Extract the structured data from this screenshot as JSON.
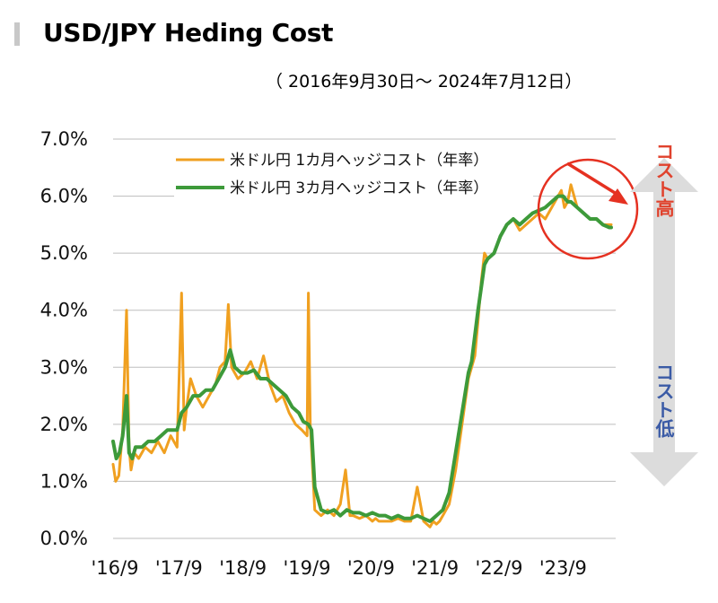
{
  "header": {
    "title": "USD/JPY Heding Cost",
    "subtitle": "（ 2016年9月30日～  2024年7月12日）"
  },
  "side_labels": {
    "high": "コスト高",
    "low": "コスト低"
  },
  "colors": {
    "series_1m": "#f0a020",
    "series_3m": "#3d9a3a",
    "grid": "#bdbdbd",
    "arrow_red": "#e53121",
    "label_high": "#e0422d",
    "label_low": "#3b5ba6",
    "side_arrow": "#dcdcdc"
  },
  "chart_data": {
    "type": "line",
    "title": "USD/JPY Heding Cost",
    "xlabel": "",
    "ylabel": "",
    "ylim": [
      0,
      7
    ],
    "xlim": [
      2016.75,
      2024.6
    ],
    "yticks": [
      "0.0%",
      "1.0%",
      "2.0%",
      "3.0%",
      "4.0%",
      "5.0%",
      "6.0%",
      "7.0%"
    ],
    "xticks": [
      {
        "label": "'16/9",
        "x": 2016.75
      },
      {
        "label": "'17/9",
        "x": 2017.75
      },
      {
        "label": "'18/9",
        "x": 2018.75
      },
      {
        "label": "'19/9",
        "x": 2019.75
      },
      {
        "label": "'20/9",
        "x": 2020.75
      },
      {
        "label": "'21/9",
        "x": 2021.75
      },
      {
        "label": "'22/9",
        "x": 2022.75
      },
      {
        "label": "'23/9",
        "x": 2023.75
      }
    ],
    "grid": true,
    "legend_position": "top",
    "series": [
      {
        "name": "米ドル円 1カ月ヘッジコスト（年率）",
        "x": [
          2016.75,
          2016.79,
          2016.84,
          2016.9,
          2016.96,
          2017.0,
          2017.03,
          2017.08,
          2017.15,
          2017.25,
          2017.35,
          2017.45,
          2017.55,
          2017.65,
          2017.75,
          2017.82,
          2017.86,
          2017.9,
          2017.96,
          2018.05,
          2018.15,
          2018.25,
          2018.35,
          2018.42,
          2018.5,
          2018.55,
          2018.6,
          2018.7,
          2018.8,
          2018.9,
          2019.0,
          2019.1,
          2019.2,
          2019.3,
          2019.4,
          2019.5,
          2019.6,
          2019.7,
          2019.78,
          2019.8,
          2019.83,
          2019.9,
          2020.0,
          2020.1,
          2020.2,
          2020.3,
          2020.38,
          2020.45,
          2020.5,
          2020.6,
          2020.7,
          2020.8,
          2020.85,
          2020.9,
          2021.0,
          2021.1,
          2021.2,
          2021.3,
          2021.4,
          2021.5,
          2021.6,
          2021.7,
          2021.75,
          2021.8,
          2021.85,
          2021.9,
          2021.95,
          2022.0,
          2022.1,
          2022.2,
          2022.3,
          2022.4,
          2022.45,
          2022.5,
          2022.55,
          2022.6,
          2022.7,
          2022.8,
          2022.9,
          2023.0,
          2023.1,
          2023.2,
          2023.3,
          2023.4,
          2023.5,
          2023.6,
          2023.7,
          2023.75,
          2023.8,
          2023.85,
          2023.9,
          2024.0,
          2024.1,
          2024.2,
          2024.3,
          2024.4,
          2024.5,
          2024.53
        ],
        "y": [
          1.3,
          1.0,
          1.1,
          1.9,
          4.0,
          1.6,
          1.2,
          1.5,
          1.4,
          1.6,
          1.5,
          1.7,
          1.5,
          1.8,
          1.6,
          4.3,
          1.9,
          2.3,
          2.8,
          2.5,
          2.3,
          2.5,
          2.7,
          3.0,
          3.1,
          4.1,
          3.0,
          2.8,
          2.9,
          3.1,
          2.8,
          3.2,
          2.7,
          2.4,
          2.5,
          2.2,
          2.0,
          1.9,
          1.8,
          4.3,
          2.0,
          0.5,
          0.4,
          0.5,
          0.4,
          0.6,
          1.2,
          0.4,
          0.4,
          0.35,
          0.4,
          0.3,
          0.35,
          0.3,
          0.3,
          0.3,
          0.35,
          0.3,
          0.3,
          0.9,
          0.3,
          0.2,
          0.3,
          0.25,
          0.3,
          0.4,
          0.5,
          0.6,
          1.2,
          2.0,
          2.8,
          3.2,
          3.8,
          4.5,
          5.0,
          4.9,
          5.0,
          5.3,
          5.5,
          5.6,
          5.4,
          5.5,
          5.6,
          5.7,
          5.6,
          5.8,
          6.0,
          6.1,
          5.8,
          5.9,
          6.2,
          5.8,
          5.7,
          5.6,
          5.6,
          5.5,
          5.5,
          5.5
        ]
      },
      {
        "name": "米ドル円 3カ月ヘッジコスト（年率）",
        "x": [
          2016.75,
          2016.8,
          2016.85,
          2016.9,
          2016.96,
          2017.0,
          2017.05,
          2017.1,
          2017.2,
          2017.3,
          2017.4,
          2017.5,
          2017.6,
          2017.7,
          2017.75,
          2017.82,
          2017.9,
          2018.0,
          2018.1,
          2018.2,
          2018.3,
          2018.4,
          2018.5,
          2018.58,
          2018.65,
          2018.75,
          2018.85,
          2018.95,
          2019.05,
          2019.15,
          2019.25,
          2019.35,
          2019.45,
          2019.55,
          2019.65,
          2019.72,
          2019.8,
          2019.85,
          2019.9,
          2020.0,
          2020.1,
          2020.2,
          2020.3,
          2020.4,
          2020.5,
          2020.6,
          2020.7,
          2020.8,
          2020.9,
          2021.0,
          2021.1,
          2021.2,
          2021.3,
          2021.4,
          2021.5,
          2021.6,
          2021.7,
          2021.75,
          2021.8,
          2021.9,
          2022.0,
          2022.1,
          2022.2,
          2022.3,
          2022.35,
          2022.45,
          2022.55,
          2022.6,
          2022.7,
          2022.8,
          2022.9,
          2023.0,
          2023.1,
          2023.2,
          2023.3,
          2023.4,
          2023.5,
          2023.6,
          2023.7,
          2023.78,
          2023.85,
          2023.9,
          2024.0,
          2024.1,
          2024.2,
          2024.3,
          2024.4,
          2024.5,
          2024.53
        ],
        "y": [
          1.7,
          1.4,
          1.5,
          1.8,
          2.5,
          1.5,
          1.4,
          1.6,
          1.6,
          1.7,
          1.7,
          1.8,
          1.9,
          1.9,
          1.9,
          2.2,
          2.3,
          2.5,
          2.5,
          2.6,
          2.6,
          2.8,
          3.0,
          3.3,
          3.0,
          2.9,
          2.9,
          2.95,
          2.8,
          2.8,
          2.7,
          2.6,
          2.5,
          2.3,
          2.2,
          2.05,
          2.0,
          1.9,
          0.9,
          0.5,
          0.45,
          0.5,
          0.4,
          0.5,
          0.45,
          0.45,
          0.4,
          0.45,
          0.4,
          0.4,
          0.35,
          0.4,
          0.35,
          0.35,
          0.4,
          0.35,
          0.3,
          0.35,
          0.4,
          0.5,
          0.8,
          1.5,
          2.2,
          2.9,
          3.1,
          4.0,
          4.8,
          4.9,
          5.0,
          5.3,
          5.5,
          5.6,
          5.5,
          5.6,
          5.7,
          5.75,
          5.8,
          5.9,
          6.0,
          6.0,
          5.9,
          5.9,
          5.8,
          5.7,
          5.6,
          5.6,
          5.5,
          5.45,
          5.45
        ]
      }
    ]
  }
}
